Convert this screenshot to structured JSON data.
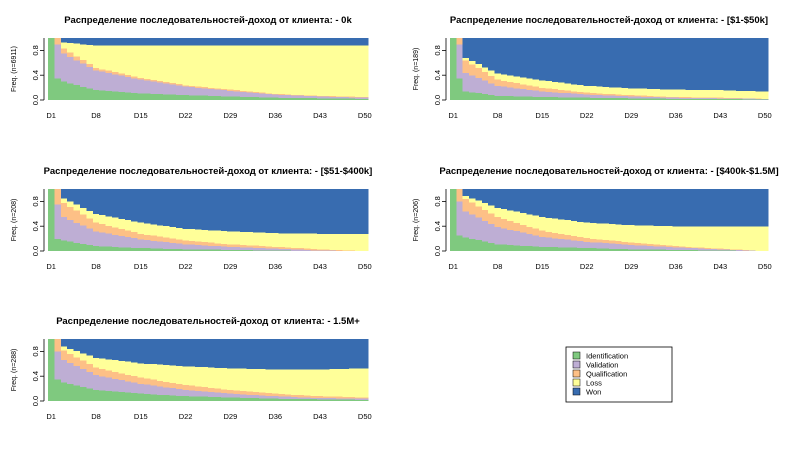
{
  "chart_data": {
    "type": "area",
    "stacked": true,
    "normalized": true,
    "x_categories": [
      "D1",
      "D8",
      "D15",
      "D22",
      "D29",
      "D36",
      "D43",
      "D50"
    ],
    "x_range": [
      1,
      50
    ],
    "ylim": [
      0,
      1
    ],
    "yticks": [
      "0.0",
      "0.4",
      "0.8"
    ],
    "state_order_bottom_to_top": [
      "Identification",
      "Validation",
      "Qualification",
      "Loss",
      "Won"
    ],
    "colors": {
      "Identification": "#7fc97f",
      "Validation": "#beaed4",
      "Qualification": "#fdc086",
      "Loss": "#ffff99",
      "Won": "#386cb0"
    },
    "legend": {
      "placement": "bottom-right",
      "entries": [
        "Identification",
        "Validation",
        "Qualification",
        "Loss",
        "Won"
      ]
    },
    "panels": [
      {
        "title": "Распределение последовательностей-доход от клиента: - 0k",
        "ylabel": "Freq. (n=6911)",
        "series": [
          {
            "name": "Identification",
            "values": {
              "1": 1.0,
              "2": 0.35,
              "3": 0.3,
              "8": 0.16,
              "15": 0.11,
              "22": 0.08,
              "29": 0.06,
              "36": 0.04,
              "43": 0.03,
              "50": 0.02
            }
          },
          {
            "name": "Validation",
            "values": {
              "1": 0.0,
              "2": 0.55,
              "3": 0.45,
              "8": 0.32,
              "15": 0.22,
              "22": 0.14,
              "29": 0.09,
              "36": 0.05,
              "43": 0.03,
              "50": 0.02
            }
          },
          {
            "name": "Qualification",
            "values": {
              "1": 0.0,
              "2": 0.1,
              "3": 0.08,
              "8": 0.04,
              "15": 0.03,
              "22": 0.02,
              "29": 0.02,
              "36": 0.01,
              "43": 0.01,
              "50": 0.01
            }
          },
          {
            "name": "Loss",
            "values": {
              "1": 0.0,
              "2": 0.0,
              "3": 0.1,
              "8": 0.36,
              "15": 0.52,
              "22": 0.64,
              "29": 0.71,
              "36": 0.78,
              "43": 0.81,
              "50": 0.83
            }
          },
          {
            "name": "Won",
            "values": {
              "1": 0.0,
              "2": 0.0,
              "3": 0.07,
              "8": 0.12,
              "15": 0.12,
              "22": 0.12,
              "29": 0.12,
              "36": 0.12,
              "43": 0.12,
              "50": 0.12
            }
          }
        ]
      },
      {
        "title": "Распределение последовательностей-доход от клиента: - [$1-$50k]",
        "ylabel": "Freq. (n=189)",
        "series": [
          {
            "name": "Identification",
            "values": {
              "1": 1.0,
              "2": 0.35,
              "3": 0.14,
              "8": 0.07,
              "15": 0.05,
              "22": 0.04,
              "29": 0.03,
              "36": 0.02,
              "43": 0.02,
              "50": 0.01
            }
          },
          {
            "name": "Validation",
            "values": {
              "1": 0.0,
              "2": 0.55,
              "3": 0.3,
              "8": 0.16,
              "15": 0.09,
              "22": 0.05,
              "29": 0.03,
              "36": 0.02,
              "43": 0.01,
              "50": 0.01
            }
          },
          {
            "name": "Qualification",
            "values": {
              "1": 0.0,
              "2": 0.1,
              "3": 0.2,
              "8": 0.1,
              "15": 0.06,
              "22": 0.03,
              "29": 0.02,
              "36": 0.01,
              "43": 0.01,
              "50": 0.0
            }
          },
          {
            "name": "Loss",
            "values": {
              "1": 0.0,
              "2": 0.0,
              "3": 0.04,
              "8": 0.1,
              "15": 0.12,
              "22": 0.11,
              "29": 0.11,
              "36": 0.12,
              "43": 0.12,
              "50": 0.12
            }
          },
          {
            "name": "Won",
            "values": {
              "1": 0.0,
              "2": 0.0,
              "3": 0.32,
              "8": 0.57,
              "15": 0.68,
              "22": 0.77,
              "29": 0.81,
              "36": 0.83,
              "43": 0.84,
              "50": 0.86
            }
          }
        ]
      },
      {
        "title": "Распределение последовательностей-доход от клиента: - [$51-$400k]",
        "ylabel": "Freq. (n=208)",
        "series": [
          {
            "name": "Identification",
            "values": {
              "1": 1.0,
              "2": 0.2,
              "3": 0.17,
              "8": 0.08,
              "15": 0.05,
              "22": 0.03,
              "29": 0.02,
              "36": 0.01,
              "43": 0.0,
              "50": 0.0
            }
          },
          {
            "name": "Validation",
            "values": {
              "1": 0.0,
              "2": 0.55,
              "3": 0.38,
              "8": 0.24,
              "15": 0.14,
              "22": 0.08,
              "29": 0.05,
              "36": 0.03,
              "43": 0.01,
              "50": 0.0
            }
          },
          {
            "name": "Qualification",
            "values": {
              "1": 0.0,
              "2": 0.25,
              "3": 0.23,
              "8": 0.14,
              "15": 0.09,
              "22": 0.06,
              "29": 0.04,
              "36": 0.03,
              "43": 0.02,
              "50": 0.0
            }
          },
          {
            "name": "Loss",
            "values": {
              "1": 0.0,
              "2": 0.0,
              "3": 0.07,
              "8": 0.14,
              "15": 0.18,
              "22": 0.19,
              "29": 0.21,
              "36": 0.22,
              "43": 0.25,
              "50": 0.28
            }
          },
          {
            "name": "Won",
            "values": {
              "1": 0.0,
              "2": 0.0,
              "3": 0.15,
              "8": 0.4,
              "15": 0.54,
              "22": 0.64,
              "29": 0.68,
              "36": 0.71,
              "43": 0.72,
              "50": 0.72
            }
          }
        ]
      },
      {
        "title": "Распределение последовательностей-доход от клиента: - [$400k-$1.5M]",
        "ylabel": "Freq. (n=206)",
        "series": [
          {
            "name": "Identification",
            "values": {
              "1": 1.0,
              "2": 0.25,
              "3": 0.22,
              "8": 0.11,
              "15": 0.07,
              "22": 0.05,
              "29": 0.03,
              "36": 0.02,
              "43": 0.01,
              "50": 0.0
            }
          },
          {
            "name": "Validation",
            "values": {
              "1": 0.0,
              "2": 0.55,
              "3": 0.42,
              "8": 0.28,
              "15": 0.16,
              "22": 0.1,
              "29": 0.07,
              "36": 0.04,
              "43": 0.02,
              "50": 0.0
            }
          },
          {
            "name": "Qualification",
            "values": {
              "1": 0.0,
              "2": 0.2,
              "3": 0.2,
              "8": 0.16,
              "15": 0.1,
              "22": 0.06,
              "29": 0.04,
              "36": 0.02,
              "43": 0.01,
              "50": 0.0
            }
          },
          {
            "name": "Loss",
            "values": {
              "1": 0.0,
              "2": 0.0,
              "3": 0.05,
              "8": 0.15,
              "15": 0.22,
              "22": 0.25,
              "29": 0.28,
              "36": 0.32,
              "43": 0.36,
              "50": 0.4
            }
          },
          {
            "name": "Won",
            "values": {
              "1": 0.0,
              "2": 0.0,
              "3": 0.11,
              "8": 0.3,
              "15": 0.45,
              "22": 0.54,
              "29": 0.58,
              "36": 0.6,
              "43": 0.6,
              "50": 0.6
            }
          }
        ]
      },
      {
        "title": "Распределение последовательностей-доход от клиента: - 1.5M+",
        "ylabel": "Freq. (n=288)",
        "series": [
          {
            "name": "Identification",
            "values": {
              "1": 1.0,
              "2": 0.35,
              "3": 0.3,
              "8": 0.18,
              "15": 0.12,
              "22": 0.08,
              "29": 0.06,
              "36": 0.04,
              "43": 0.03,
              "50": 0.02
            }
          },
          {
            "name": "Validation",
            "values": {
              "1": 0.0,
              "2": 0.45,
              "3": 0.36,
              "8": 0.24,
              "15": 0.16,
              "22": 0.1,
              "29": 0.06,
              "36": 0.04,
              "43": 0.02,
              "50": 0.02
            }
          },
          {
            "name": "Qualification",
            "values": {
              "1": 0.0,
              "2": 0.2,
              "3": 0.16,
              "8": 0.12,
              "15": 0.1,
              "22": 0.08,
              "29": 0.06,
              "36": 0.04,
              "43": 0.03,
              "50": 0.02
            }
          },
          {
            "name": "Loss",
            "values": {
              "1": 0.0,
              "2": 0.0,
              "3": 0.06,
              "8": 0.16,
              "15": 0.23,
              "22": 0.3,
              "29": 0.35,
              "36": 0.39,
              "43": 0.43,
              "50": 0.47
            }
          },
          {
            "name": "Won",
            "values": {
              "1": 0.0,
              "2": 0.0,
              "3": 0.12,
              "8": 0.3,
              "15": 0.39,
              "22": 0.44,
              "29": 0.47,
              "36": 0.49,
              "43": 0.49,
              "50": 0.47
            }
          }
        ]
      }
    ]
  }
}
